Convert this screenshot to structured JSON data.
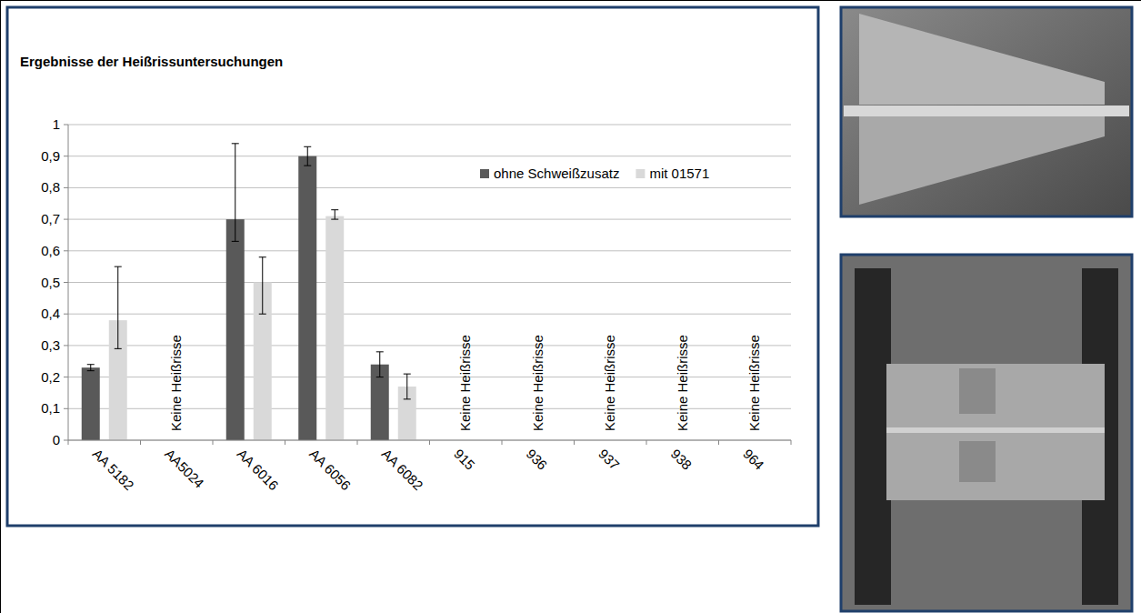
{
  "chart_data": {
    "type": "bar",
    "title": "Ergebnisse der Heißrissuntersuchungen",
    "categories": [
      "AA 5182",
      "AA5024",
      "AA 6016",
      "AA 6056",
      "AA 6082",
      "915",
      "936",
      "937",
      "938",
      "964"
    ],
    "series": [
      {
        "name": "ohne Schweißzusatz",
        "color": "#595959",
        "values": [
          0.23,
          null,
          0.7,
          0.9,
          0.24,
          null,
          null,
          null,
          null,
          null
        ],
        "error_minus": [
          0.01,
          null,
          0.07,
          0.03,
          0.04,
          null,
          null,
          null,
          null,
          null
        ],
        "error_plus": [
          0.01,
          null,
          0.24,
          0.03,
          0.04,
          null,
          null,
          null,
          null,
          null
        ]
      },
      {
        "name": "mit 01571",
        "color": "#d9d9d9",
        "values": [
          0.38,
          null,
          0.5,
          0.71,
          0.17,
          null,
          null,
          null,
          null,
          null
        ],
        "error_minus": [
          0.09,
          null,
          0.1,
          0.01,
          0.04,
          null,
          null,
          null,
          null,
          null
        ],
        "error_plus": [
          0.17,
          null,
          0.08,
          0.02,
          0.04,
          null,
          null,
          null,
          null,
          null
        ]
      }
    ],
    "annotations": [
      {
        "category": "AA5024",
        "text": "Keine Heißrisse"
      },
      {
        "category": "915",
        "text": "Keine Heißrisse"
      },
      {
        "category": "936",
        "text": "Keine Heißrisse"
      },
      {
        "category": "937",
        "text": "Keine Heißrisse"
      },
      {
        "category": "938",
        "text": "Keine Heißrisse"
      },
      {
        "category": "964",
        "text": "Keine Heißrisse"
      }
    ],
    "ylim": [
      0,
      1
    ],
    "yticks": [
      0,
      {
        "value": 0.1,
        "label": "0,1"
      },
      {
        "value": 0.2,
        "label": "0,2"
      },
      {
        "value": 0.3,
        "label": "0,3"
      },
      {
        "value": 0.4,
        "label": "0,4"
      },
      {
        "value": 0.5,
        "label": "0,5"
      },
      {
        "value": 0.6,
        "label": "0,6"
      },
      {
        "value": 0.7,
        "label": "0,7"
      },
      {
        "value": 0.8,
        "label": "0,8"
      },
      {
        "value": 0.9,
        "label": "0,9"
      },
      1
    ],
    "grid": true,
    "legend": "top-right"
  }
}
